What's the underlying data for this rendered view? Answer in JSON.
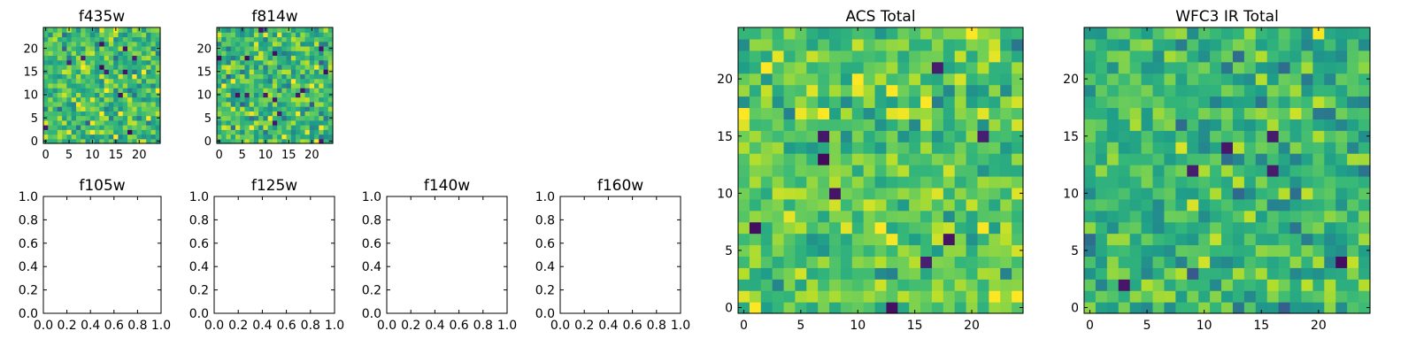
{
  "figure": {
    "background": "#ffffff",
    "colormap": "viridis",
    "colors": {
      "axis": "#000000",
      "viridis_dark": "#440154",
      "viridis_mid": "#21918c",
      "viridis_bright": "#fde725"
    }
  },
  "chart_data": [
    {
      "id": "f435w",
      "type": "heatmap",
      "title": "f435w",
      "grid_size": 25,
      "xlim": [
        -0.5,
        24.5
      ],
      "ylim": [
        -0.5,
        24.5
      ],
      "xticks": [
        0,
        5,
        10,
        15,
        20
      ],
      "yticks": [
        0,
        5,
        10,
        15,
        20
      ],
      "colormap": "viridis",
      "noise": {
        "seed": 11,
        "mean": 0.7,
        "sd": 0.13,
        "dark_fraction": 0.025
      }
    },
    {
      "id": "f814w",
      "type": "heatmap",
      "title": "f814w",
      "grid_size": 25,
      "xlim": [
        -0.5,
        24.5
      ],
      "ylim": [
        -0.5,
        24.5
      ],
      "xticks": [
        0,
        5,
        10,
        15,
        20
      ],
      "yticks": [
        0,
        5,
        10,
        15,
        20
      ],
      "colormap": "viridis",
      "noise": {
        "seed": 23,
        "mean": 0.68,
        "sd": 0.14,
        "dark_fraction": 0.03
      }
    },
    {
      "id": "f105w",
      "type": "empty",
      "title": "f105w",
      "xlim": [
        0,
        1
      ],
      "ylim": [
        0,
        1
      ],
      "xticks": [
        "0.0",
        "0.2",
        "0.4",
        "0.6",
        "0.8",
        "1.0"
      ],
      "yticks": [
        "0.0",
        "0.2",
        "0.4",
        "0.6",
        "0.8",
        "1.0"
      ]
    },
    {
      "id": "f125w",
      "type": "empty",
      "title": "f125w",
      "xlim": [
        0,
        1
      ],
      "ylim": [
        0,
        1
      ],
      "xticks": [
        "0.0",
        "0.2",
        "0.4",
        "0.6",
        "0.8",
        "1.0"
      ],
      "yticks": [
        "0.0",
        "0.2",
        "0.4",
        "0.6",
        "0.8",
        "1.0"
      ]
    },
    {
      "id": "f140w",
      "type": "empty",
      "title": "f140w",
      "xlim": [
        0,
        1
      ],
      "ylim": [
        0,
        1
      ],
      "xticks": [
        "0.0",
        "0.2",
        "0.4",
        "0.6",
        "0.8",
        "1.0"
      ],
      "yticks": [
        "0.0",
        "0.2",
        "0.4",
        "0.6",
        "0.8",
        "1.0"
      ]
    },
    {
      "id": "f160w",
      "type": "empty",
      "title": "f160w",
      "xlim": [
        0,
        1
      ],
      "ylim": [
        0,
        1
      ],
      "xticks": [
        "0.0",
        "0.2",
        "0.4",
        "0.6",
        "0.8",
        "1.0"
      ],
      "yticks": [
        "0.0",
        "0.2",
        "0.4",
        "0.6",
        "0.8",
        "1.0"
      ]
    },
    {
      "id": "acs-total",
      "type": "heatmap",
      "title": "ACS Total",
      "grid_size": 25,
      "xlim": [
        -0.5,
        24.5
      ],
      "ylim": [
        -0.5,
        24.5
      ],
      "xticks": [
        0,
        5,
        10,
        15,
        20
      ],
      "yticks": [
        0,
        5,
        10,
        15,
        20
      ],
      "colormap": "viridis",
      "noise": {
        "seed": 37,
        "mean": 0.74,
        "sd": 0.12,
        "dark_fraction": 0.012
      }
    },
    {
      "id": "wfc3-ir-total",
      "type": "heatmap",
      "title": "WFC3 IR Total",
      "grid_size": 25,
      "xlim": [
        -0.5,
        24.5
      ],
      "ylim": [
        -0.5,
        24.5
      ],
      "xticks": [
        0,
        5,
        10,
        15,
        20
      ],
      "yticks": [
        0,
        5,
        10,
        15,
        20
      ],
      "colormap": "viridis",
      "noise": {
        "seed": 51,
        "mean": 0.66,
        "sd": 0.12,
        "dark_fraction": 0.012
      }
    }
  ]
}
